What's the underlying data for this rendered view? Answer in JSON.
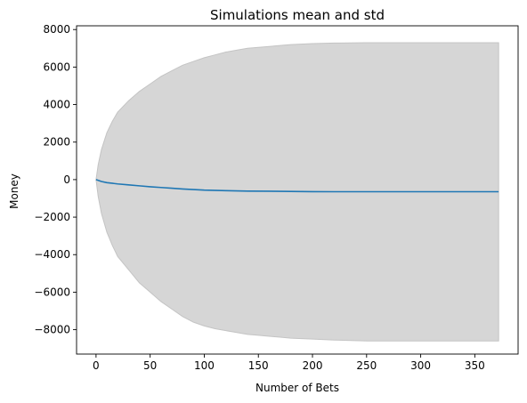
{
  "chart_data": {
    "type": "line",
    "title": "Simulations mean and std",
    "xlabel": "Number of Bets",
    "ylabel": "Money",
    "xlim": [
      -18,
      390
    ],
    "ylim": [
      -9300,
      8200
    ],
    "xticks": [
      0,
      50,
      100,
      150,
      200,
      250,
      300,
      350
    ],
    "yticks": [
      -8000,
      -6000,
      -4000,
      -2000,
      0,
      2000,
      4000,
      6000,
      8000
    ],
    "grid": false,
    "colors": {
      "mean_line": "#1f77b4",
      "std_band": "#d6d6d6",
      "std_band_edge": "#c4c4c4"
    },
    "series": [
      {
        "kind": "line",
        "x": [
          0,
          5,
          10,
          20,
          30,
          40,
          50,
          60,
          70,
          80,
          90,
          100,
          120,
          140,
          160,
          180,
          200,
          220,
          250,
          300,
          350,
          372
        ],
        "y": [
          0,
          -100,
          -160,
          -230,
          -280,
          -330,
          -380,
          -420,
          -460,
          -500,
          -530,
          -560,
          -590,
          -610,
          -620,
          -630,
          -640,
          -645,
          -645,
          -645,
          -645,
          -645
        ]
      },
      {
        "kind": "band",
        "x": [
          0,
          2,
          5,
          10,
          15,
          20,
          30,
          40,
          50,
          60,
          70,
          80,
          90,
          100,
          110,
          120,
          130,
          140,
          150,
          160,
          170,
          180,
          200,
          220,
          250,
          300,
          350,
          372
        ],
        "upper": [
          0,
          800,
          1600,
          2500,
          3100,
          3600,
          4200,
          4700,
          5100,
          5500,
          5800,
          6100,
          6300,
          6500,
          6650,
          6800,
          6900,
          7000,
          7050,
          7100,
          7150,
          7200,
          7250,
          7280,
          7300,
          7300,
          7300,
          7300
        ],
        "lower": [
          0,
          -900,
          -1800,
          -2800,
          -3500,
          -4100,
          -4800,
          -5500,
          -6000,
          -6500,
          -6900,
          -7300,
          -7600,
          -7800,
          -7950,
          -8050,
          -8150,
          -8250,
          -8300,
          -8350,
          -8400,
          -8450,
          -8500,
          -8550,
          -8600,
          -8600,
          -8600,
          -8600
        ]
      }
    ]
  }
}
